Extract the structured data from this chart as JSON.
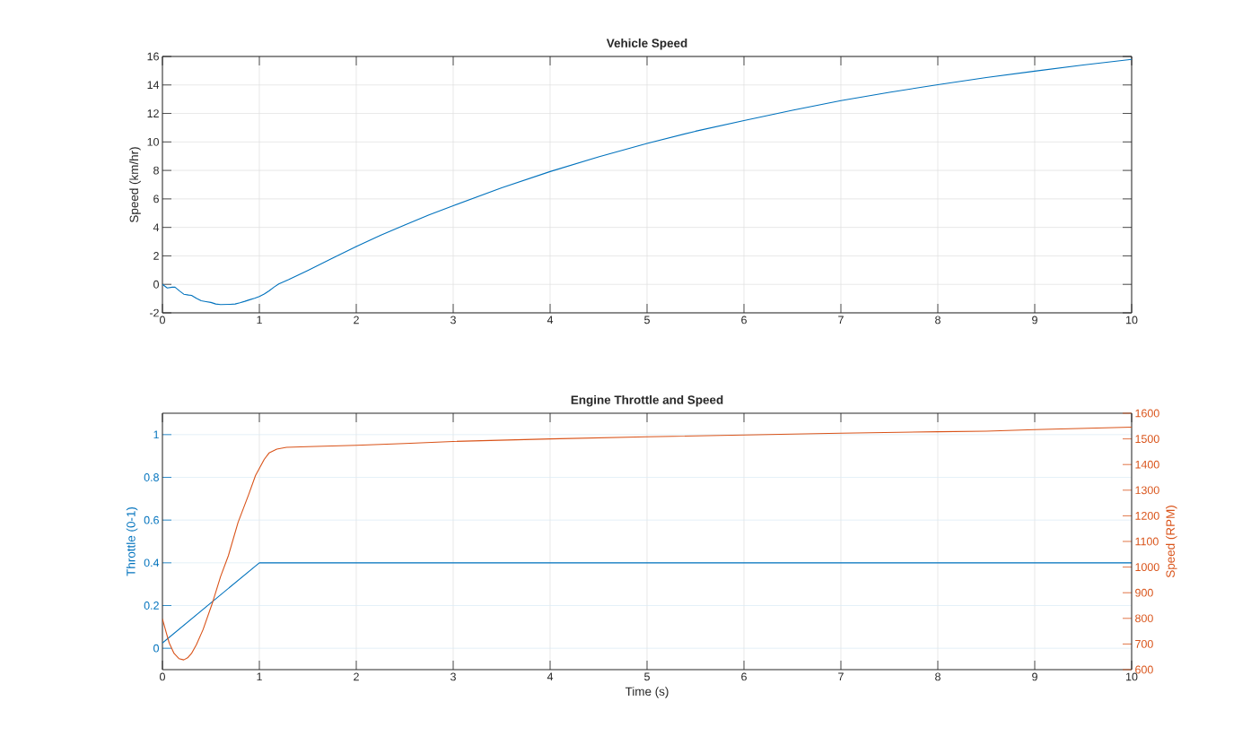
{
  "chart_data": [
    {
      "type": "line",
      "title": "Vehicle Speed",
      "ylabel": "Speed (km/hr)",
      "x": [
        0,
        0.05,
        0.1,
        0.13,
        0.18,
        0.22,
        0.27,
        0.3,
        0.35,
        0.4,
        0.45,
        0.5,
        0.55,
        0.6,
        0.7,
        0.75,
        0.8,
        0.85,
        0.9,
        0.95,
        1,
        1.05,
        1.1,
        1.15,
        1.2,
        1.3,
        1.5,
        1.75,
        2,
        2.25,
        2.5,
        2.75,
        3,
        3.5,
        4,
        4.5,
        5,
        5.5,
        6,
        6.5,
        7,
        7.5,
        8,
        8.5,
        9,
        9.5,
        10
      ],
      "series": [
        {
          "color": "#0072bd",
          "values": [
            0,
            -0.25,
            -0.2,
            -0.2,
            -0.48,
            -0.69,
            -0.75,
            -0.77,
            -0.98,
            -1.15,
            -1.21,
            -1.27,
            -1.38,
            -1.42,
            -1.4,
            -1.38,
            -1.29,
            -1.19,
            -1.08,
            -0.98,
            -0.85,
            -0.68,
            -0.46,
            -0.2,
            0.03,
            0.33,
            0.98,
            1.82,
            2.65,
            3.44,
            4.17,
            4.88,
            5.52,
            6.78,
            7.92,
            8.95,
            9.9,
            10.75,
            11.5,
            12.22,
            12.9,
            13.48,
            14.02,
            14.52,
            14.97,
            15.4,
            15.8
          ]
        }
      ],
      "xlim": [
        0,
        10
      ],
      "ylim": [
        -2,
        16
      ],
      "xticks": [
        0,
        1,
        2,
        3,
        4,
        5,
        6,
        7,
        8,
        9,
        10
      ],
      "yticks": [
        -2,
        0,
        2,
        4,
        6,
        8,
        10,
        12,
        14,
        16
      ],
      "grid": true
    },
    {
      "type": "line",
      "title": "Engine Throttle and Speed",
      "xlabel": "Time (s)",
      "ylabel": "Throttle (0-1)",
      "y2label": "Speed (RPM)",
      "series": [
        {
          "color": "#0072bd",
          "x": [
            0,
            1,
            10
          ],
          "values": [
            0.025,
            0.4,
            0.4
          ]
        },
        {
          "color": "#d95319",
          "axis": "y2",
          "x": [
            0,
            0.03,
            0.07,
            0.12,
            0.17,
            0.22,
            0.26,
            0.3,
            0.35,
            0.42,
            0.52,
            0.6,
            0.68,
            0.78,
            0.89,
            0.96,
            1,
            1.05,
            1.1,
            1.18,
            1.28,
            1.5,
            2,
            2.5,
            3,
            4,
            5,
            6,
            7,
            8,
            8.5,
            9,
            10
          ],
          "values": [
            798,
            757,
            704,
            663,
            643,
            638,
            646,
            663,
            697,
            757,
            865,
            963,
            1044,
            1174,
            1283,
            1357,
            1385,
            1420,
            1445,
            1460,
            1467,
            1470,
            1475,
            1482,
            1490,
            1500,
            1508,
            1515,
            1522,
            1528,
            1530,
            1536,
            1546
          ]
        }
      ],
      "xlim": [
        0,
        10
      ],
      "ylim": [
        -0.1,
        1.1
      ],
      "y2lim": [
        600,
        1600
      ],
      "xticks": [
        0,
        1,
        2,
        3,
        4,
        5,
        6,
        7,
        8,
        9,
        10
      ],
      "yticks": [
        0,
        0.2,
        0.4,
        0.6,
        0.8,
        1
      ],
      "y2ticks": [
        600,
        700,
        800,
        900,
        1000,
        1100,
        1200,
        1300,
        1400,
        1500,
        1600
      ],
      "grid": true
    }
  ]
}
